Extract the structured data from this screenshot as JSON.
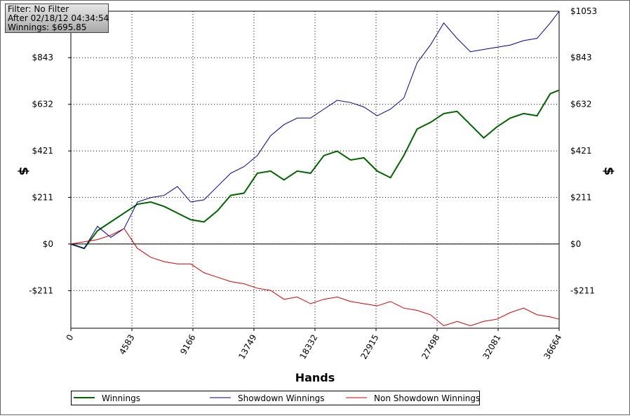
{
  "chart_data": {
    "type": "line",
    "info": [
      "Filter: No Filter",
      "After 02/18/12 04:34:54",
      "Winnings: $695.85"
    ],
    "xlabel": "Hands",
    "ylabel": "$",
    "y2label": "$",
    "x": [
      0,
      1000,
      2000,
      3000,
      4000,
      5000,
      6000,
      7000,
      8000,
      9000,
      10000,
      11000,
      12000,
      13000,
      14000,
      15000,
      16000,
      17000,
      18000,
      19000,
      20000,
      21000,
      22000,
      23000,
      24000,
      25000,
      26000,
      27000,
      28000,
      29000,
      30000,
      31000,
      32000,
      33000,
      34000,
      35000,
      36000,
      36664
    ],
    "series": [
      {
        "name": "Winnings",
        "color": "#006400",
        "values": [
          0,
          -20,
          60,
          100,
          140,
          180,
          190,
          170,
          140,
          110,
          100,
          150,
          220,
          230,
          320,
          330,
          290,
          330,
          320,
          400,
          420,
          380,
          390,
          330,
          300,
          400,
          520,
          550,
          590,
          600,
          540,
          480,
          530,
          570,
          590,
          580,
          680,
          696
        ]
      },
      {
        "name": "Showdown Winnings",
        "color": "#00008b",
        "values": [
          0,
          -20,
          80,
          30,
          70,
          190,
          210,
          220,
          260,
          190,
          200,
          260,
          320,
          350,
          400,
          490,
          540,
          570,
          570,
          610,
          650,
          640,
          620,
          580,
          610,
          660,
          820,
          900,
          1000,
          930,
          870,
          880,
          890,
          900,
          920,
          930,
          1000,
          1053
        ]
      },
      {
        "name": "Non Showdown Winnings",
        "color": "#d00000",
        "values": [
          0,
          10,
          20,
          40,
          70,
          -20,
          -60,
          -80,
          -90,
          -90,
          -130,
          -150,
          -170,
          -180,
          -200,
          -210,
          -250,
          -240,
          -270,
          -250,
          -240,
          -260,
          -270,
          -280,
          -260,
          -290,
          -300,
          -320,
          -370,
          -350,
          -370,
          -350,
          -340,
          -310,
          -290,
          -320,
          -330,
          -340
        ]
      }
    ],
    "xlim": [
      0,
      36664
    ],
    "xticks": [
      0,
      4583,
      9166,
      13749,
      18332,
      22915,
      27498,
      32081,
      36664
    ],
    "ylim": [
      -381,
      1053
    ],
    "yticks": [
      {
        "value": -211,
        "label": "-$211"
      },
      {
        "value": 0,
        "label": "$0"
      },
      {
        "value": 211,
        "label": "$211"
      },
      {
        "value": 421,
        "label": "$421"
      },
      {
        "value": 632,
        "label": "$632"
      },
      {
        "value": 843,
        "label": "$843"
      },
      {
        "value": 1053,
        "label": "$1053"
      }
    ],
    "grid": true
  }
}
